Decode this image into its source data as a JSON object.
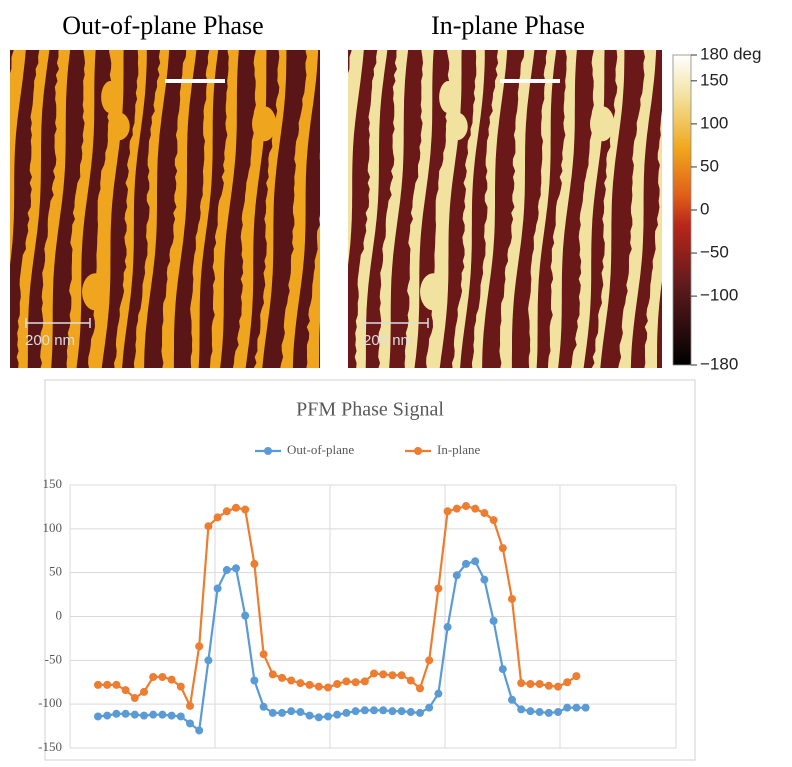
{
  "images": [
    {
      "title": "Out-of-plane Phase",
      "scale_bar_label": "200 nm"
    },
    {
      "title": "In-plane Phase",
      "scale_bar_label": "200 nm"
    }
  ],
  "colorbar": {
    "lim": [
      -180,
      180
    ],
    "ticks": [
      {
        "value": 180,
        "label": "180 deg"
      },
      150,
      100,
      50,
      0,
      {
        "value": -50,
        "label": "−50"
      },
      {
        "value": -100,
        "label": "−100"
      },
      {
        "value": -180,
        "label": "−180"
      }
    ]
  },
  "chart_data": {
    "type": "line",
    "title": "PFM Phase Signal",
    "categories": [
      null,
      null,
      null,
      null,
      null,
      null,
      null,
      null,
      null,
      null,
      null,
      null,
      null,
      null,
      null,
      null,
      null,
      null,
      null,
      null,
      null,
      null,
      null,
      null,
      null,
      null,
      null,
      null,
      null,
      null,
      null,
      null,
      null,
      null,
      null,
      null,
      null,
      null,
      null,
      null,
      null,
      null,
      null,
      null,
      null,
      null,
      null,
      null,
      null,
      null,
      null,
      null,
      null,
      null
    ],
    "series": [
      {
        "name": "Out-of-plane",
        "color": "#5b9bd5",
        "values": [
          -114,
          -113,
          -111,
          -111,
          -112,
          -113,
          -112,
          -112,
          -113,
          -114,
          -122,
          -130,
          -50,
          32,
          53,
          55,
          1,
          -73,
          -103,
          -110,
          -110,
          -108,
          -109,
          -113,
          -115,
          -114,
          -112,
          -110,
          -108,
          -107,
          -107,
          -107,
          -108,
          -108,
          -109,
          -110,
          -104,
          -88,
          -12,
          47,
          60,
          63,
          42,
          -5,
          -60,
          -95,
          -106,
          -108,
          -109,
          -110,
          -109,
          -104,
          -104,
          -104
        ]
      },
      {
        "name": "In-plane",
        "color": "#ed7d31",
        "values": [
          -78,
          -78,
          -78,
          -84,
          -93,
          -86,
          -69,
          -69,
          -72,
          -80,
          -102,
          -34,
          103,
          113,
          120,
          124,
          122,
          60,
          -43,
          -66,
          -70,
          -73,
          -76,
          -78,
          -80,
          -81,
          -77,
          -74,
          -75,
          -74,
          -65,
          -66,
          -67,
          -67,
          -73,
          -82,
          -50,
          32,
          120,
          123,
          126,
          123,
          118,
          110,
          78,
          20,
          -76,
          -77,
          -77,
          -79,
          -80,
          -75,
          -68,
          null
        ]
      }
    ],
    "ylim": [
      -150,
      150
    ],
    "yticks": [
      150,
      100,
      50,
      0,
      -50,
      -100,
      -150
    ],
    "grid": true,
    "legend": "top"
  }
}
